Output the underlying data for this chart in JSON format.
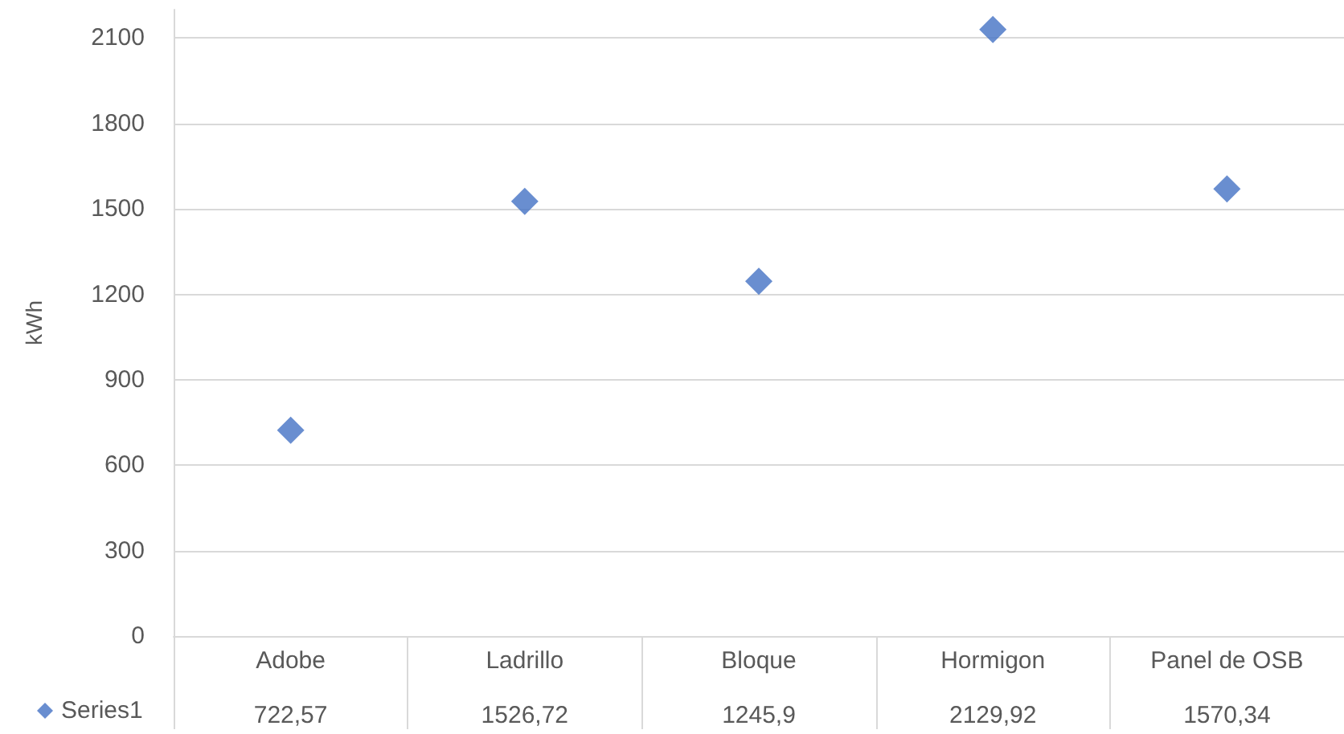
{
  "chart_data": {
    "type": "scatter",
    "ylabel": "kWh",
    "categories": [
      "Adobe",
      "Ladrillo",
      "Bloque",
      "Hormigon",
      "Panel de OSB"
    ],
    "series": [
      {
        "name": "Series1",
        "color": "#4472c4",
        "values": [
          722.57,
          1526.72,
          1245.9,
          2129.92,
          1570.34
        ],
        "value_labels": [
          "722,57",
          "1526,72",
          "1245,9",
          "2129,92",
          "1570,34"
        ]
      }
    ],
    "ylim": [
      0,
      2200
    ],
    "yticks": [
      0,
      300,
      600,
      900,
      1200,
      1500,
      1800,
      2100
    ],
    "grid": "y",
    "legend": "bottom left",
    "marker": "diamond"
  }
}
